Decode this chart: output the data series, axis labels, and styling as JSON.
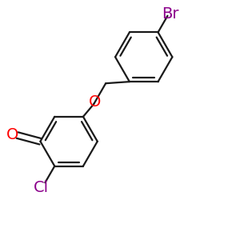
{
  "bg_color": "#ffffff",
  "bond_color": "#1a1a1a",
  "bond_width": 1.6,
  "O_label": "O",
  "O_color": "#ff0000",
  "aldehyde_O_label": "O",
  "aldehyde_O_color": "#ff0000",
  "Cl_label": "Cl",
  "Cl_color": "#8b008b",
  "Br_label": "Br",
  "Br_color": "#8b008b",
  "label_fontsize": 14,
  "r1cx": 0.365,
  "r1cy": 0.42,
  "r1r": 0.14,
  "r2cx": 0.645,
  "r2cy": 0.77,
  "r2r": 0.135
}
